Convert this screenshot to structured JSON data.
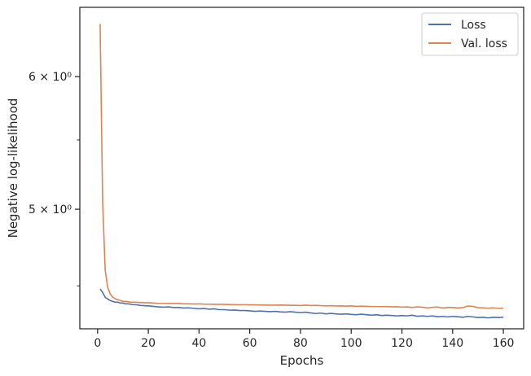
{
  "chart_data": {
    "type": "line",
    "xlabel": "Epochs",
    "ylabel": "Negative log-likelihood",
    "yscale": "log",
    "xlim": [
      -7,
      168
    ],
    "ylim": [
      4.242,
      6.6
    ],
    "xticks": [
      0,
      20,
      40,
      60,
      80,
      100,
      120,
      140,
      160
    ],
    "yticks": [
      {
        "value": 5,
        "label": "5 × 10⁰"
      },
      {
        "value": 6,
        "label": "6 × 10⁰"
      }
    ],
    "grid": false,
    "legend_position": "top-right",
    "series": [
      {
        "name": "Loss",
        "color": "#4c72b0",
        "x": [
          1,
          2,
          3,
          4,
          5,
          6,
          7,
          8,
          9,
          10,
          11,
          12,
          13,
          14,
          15,
          16,
          17,
          18,
          19,
          20,
          22,
          24,
          26,
          28,
          30,
          32,
          34,
          36,
          38,
          40,
          42,
          44,
          46,
          48,
          50,
          52,
          54,
          56,
          58,
          60,
          62,
          64,
          66,
          68,
          70,
          72,
          74,
          76,
          78,
          80,
          82,
          84,
          86,
          88,
          90,
          92,
          94,
          96,
          98,
          100,
          102,
          104,
          106,
          108,
          110,
          112,
          114,
          116,
          118,
          120,
          122,
          124,
          126,
          128,
          130,
          132,
          134,
          136,
          138,
          140,
          142,
          144,
          146,
          148,
          150,
          152,
          154,
          156,
          158,
          160
        ],
        "values": [
          4.48,
          4.46,
          4.43,
          4.42,
          4.41,
          4.405,
          4.4,
          4.4,
          4.395,
          4.395,
          4.39,
          4.39,
          4.388,
          4.385,
          4.385,
          4.383,
          4.38,
          4.38,
          4.378,
          4.378,
          4.375,
          4.372,
          4.37,
          4.372,
          4.368,
          4.368,
          4.365,
          4.366,
          4.363,
          4.36,
          4.362,
          4.358,
          4.36,
          4.355,
          4.355,
          4.352,
          4.353,
          4.35,
          4.35,
          4.348,
          4.345,
          4.347,
          4.345,
          4.343,
          4.345,
          4.342,
          4.34,
          4.343,
          4.34,
          4.338,
          4.34,
          4.336,
          4.332,
          4.335,
          4.33,
          4.333,
          4.33,
          4.328,
          4.33,
          4.327,
          4.325,
          4.328,
          4.325,
          4.322,
          4.325,
          4.32,
          4.322,
          4.32,
          4.318,
          4.32,
          4.318,
          4.322,
          4.316,
          4.318,
          4.315,
          4.318,
          4.313,
          4.315,
          4.312,
          4.315,
          4.313,
          4.31,
          4.315,
          4.312,
          4.308,
          4.31,
          4.306,
          4.31,
          4.308,
          4.31
        ]
      },
      {
        "name": "Val. loss",
        "color": "#dd8452",
        "x": [
          1,
          2,
          3,
          4,
          5,
          6,
          7,
          8,
          9,
          10,
          11,
          12,
          13,
          14,
          15,
          16,
          17,
          18,
          19,
          20,
          22,
          24,
          26,
          28,
          30,
          32,
          34,
          36,
          38,
          40,
          42,
          44,
          46,
          48,
          50,
          52,
          54,
          56,
          58,
          60,
          62,
          64,
          66,
          68,
          70,
          72,
          74,
          76,
          78,
          80,
          82,
          84,
          86,
          88,
          90,
          92,
          94,
          96,
          98,
          100,
          102,
          104,
          106,
          108,
          110,
          112,
          114,
          116,
          118,
          120,
          122,
          124,
          126,
          128,
          130,
          132,
          134,
          136,
          138,
          140,
          142,
          144,
          146,
          148,
          150,
          152,
          154,
          156,
          158,
          160
        ],
        "values": [
          6.45,
          5.05,
          4.6,
          4.49,
          4.45,
          4.43,
          4.42,
          4.415,
          4.41,
          4.405,
          4.405,
          4.403,
          4.4,
          4.4,
          4.4,
          4.398,
          4.398,
          4.397,
          4.397,
          4.397,
          4.395,
          4.393,
          4.393,
          4.392,
          4.392,
          4.392,
          4.39,
          4.39,
          4.389,
          4.39,
          4.388,
          4.388,
          4.387,
          4.387,
          4.387,
          4.386,
          4.385,
          4.385,
          4.385,
          4.384,
          4.384,
          4.383,
          4.383,
          4.382,
          4.382,
          4.383,
          4.382,
          4.381,
          4.381,
          4.38,
          4.382,
          4.38,
          4.381,
          4.379,
          4.378,
          4.379,
          4.377,
          4.378,
          4.376,
          4.378,
          4.375,
          4.376,
          4.375,
          4.374,
          4.374,
          4.373,
          4.374,
          4.372,
          4.373,
          4.37,
          4.372,
          4.368,
          4.372,
          4.37,
          4.366,
          4.369,
          4.371,
          4.365,
          4.368,
          4.368,
          4.365,
          4.367,
          4.377,
          4.375,
          4.367,
          4.366,
          4.364,
          4.366,
          4.363,
          4.364
        ]
      }
    ]
  }
}
